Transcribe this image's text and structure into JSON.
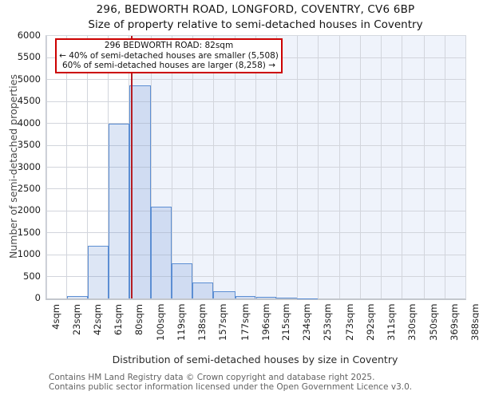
{
  "page": {
    "title": "296, BEDWORTH ROAD, LONGFORD, COVENTRY, CV6 6BP",
    "subtitle": "Size of property relative to semi-detached houses in Coventry"
  },
  "annotation": {
    "line1": "296 BEDWORTH ROAD: 82sqm",
    "line2": "← 40% of semi-detached houses are smaller (5,508)",
    "line3": "60% of semi-detached houses are larger (8,258) →"
  },
  "footer": {
    "line1": "Contains HM Land Registry data © Crown copyright and database right 2025.",
    "line2": "Contains public sector information licensed under the Open Government Licence v3.0."
  },
  "chart_data": {
    "type": "bar",
    "title": "296, BEDWORTH ROAD, LONGFORD, COVENTRY, CV6 6BP",
    "subtitle": "Size of property relative to semi-detached houses in Coventry",
    "xlabel": "Distribution of semi-detached houses by size in Coventry",
    "ylabel": "Number of semi-detached properties",
    "bin_edges": [
      4,
      23,
      42,
      61,
      80,
      100,
      119,
      138,
      157,
      177,
      196,
      215,
      234,
      253,
      273,
      292,
      311,
      330,
      350,
      369,
      388
    ],
    "x_tick_labels": [
      "4sqm",
      "23sqm",
      "42sqm",
      "61sqm",
      "80sqm",
      "100sqm",
      "119sqm",
      "138sqm",
      "157sqm",
      "177sqm",
      "196sqm",
      "215sqm",
      "234sqm",
      "253sqm",
      "273sqm",
      "292sqm",
      "311sqm",
      "330sqm",
      "350sqm",
      "369sqm",
      "388sqm"
    ],
    "counts": [
      0,
      50,
      1200,
      4000,
      4870,
      2100,
      800,
      360,
      160,
      60,
      30,
      15,
      8,
      0,
      0,
      0,
      0,
      0,
      0,
      0
    ],
    "ylim": [
      0,
      6000
    ],
    "ytick_step": 500,
    "grid": true,
    "legend": null,
    "marker": {
      "value_sqm": 82,
      "label": "296 BEDWORTH ROAD: 82sqm",
      "smaller_pct": 40,
      "smaller_count": "5,508",
      "larger_pct": 60,
      "larger_count": "8,258"
    },
    "colors": {
      "marker_line": "#b51c23",
      "annotation_border": "#cc0000",
      "bar_border": "#5c8ed3",
      "bar_fill": "rgba(98,142,208,0.22)",
      "shade_region": "#eff3fb",
      "gridline": "#d2d5dc"
    }
  }
}
